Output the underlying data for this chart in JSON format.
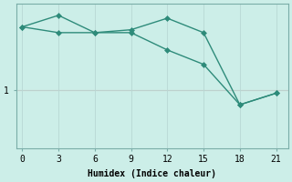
{
  "xlabel": "Humidex (Indice chaleur)",
  "ylabel": "",
  "bg_color": "#cceee8",
  "line_color": "#2e8b7a",
  "grid_color": "#b8d8d4",
  "highlight_y": 1.0,
  "highlight_color": "#d8b0aa",
  "xlim": [
    -0.5,
    22
  ],
  "ylim": [
    0,
    2.5
  ],
  "xticks": [
    0,
    3,
    6,
    9,
    12,
    15,
    18,
    21
  ],
  "yticks": [
    1
  ],
  "series1_x": [
    0,
    3,
    6,
    9,
    12,
    15,
    18,
    21
  ],
  "series1_y": [
    2.1,
    2.3,
    2.0,
    2.05,
    2.25,
    2.0,
    0.75,
    0.95
  ],
  "series2_x": [
    0,
    3,
    6,
    9,
    12,
    15,
    18,
    21
  ],
  "series2_y": [
    2.1,
    2.0,
    2.0,
    2.0,
    1.7,
    1.45,
    0.75,
    0.95
  ],
  "marker": "D",
  "markersize": 3,
  "linewidth": 1.0
}
